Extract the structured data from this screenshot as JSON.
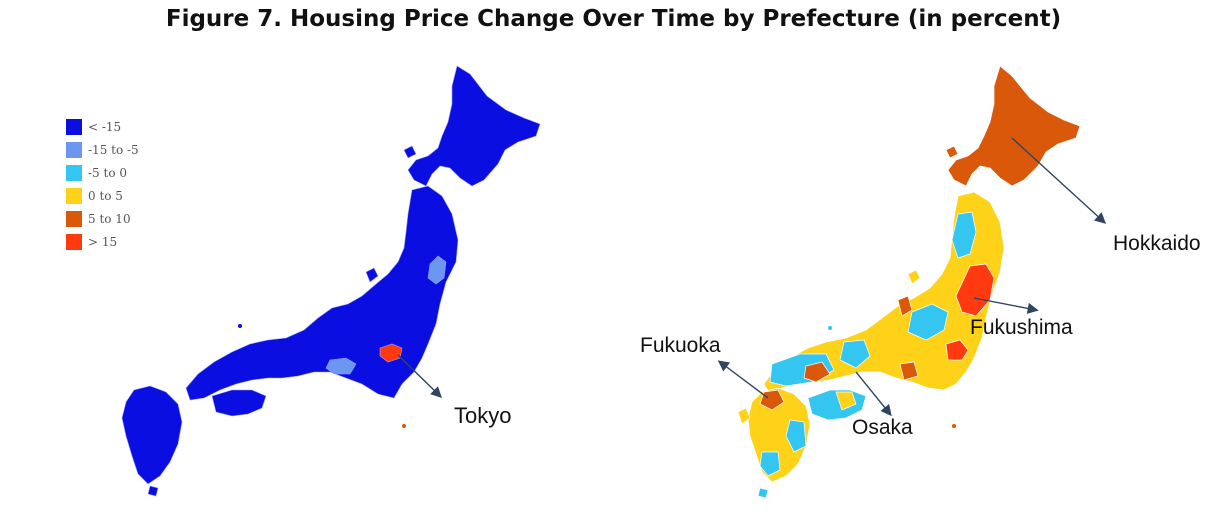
{
  "title": "Figure 7. Housing Price Change Over Time by Prefecture (in percent)",
  "legend": {
    "items": [
      {
        "label": "< -15",
        "color": "#0a0ee0"
      },
      {
        "label": "-15 to -5",
        "color": "#6b96f2"
      },
      {
        "label": "-5 to 0",
        "color": "#34c5f0"
      },
      {
        "label": "0 to 5",
        "color": "#ffd21a"
      },
      {
        "label": "5 to 10",
        "color": "#d9580a"
      },
      {
        "label": "> 15",
        "color": "#ff3a10"
      }
    ]
  },
  "left_map": {
    "callouts": [
      {
        "label": "Tokyo"
      }
    ]
  },
  "right_map": {
    "callouts": [
      {
        "label": "Hokkaido"
      },
      {
        "label": "Fukushima"
      },
      {
        "label": "Fukuoka"
      },
      {
        "label": "Osaka"
      }
    ]
  }
}
